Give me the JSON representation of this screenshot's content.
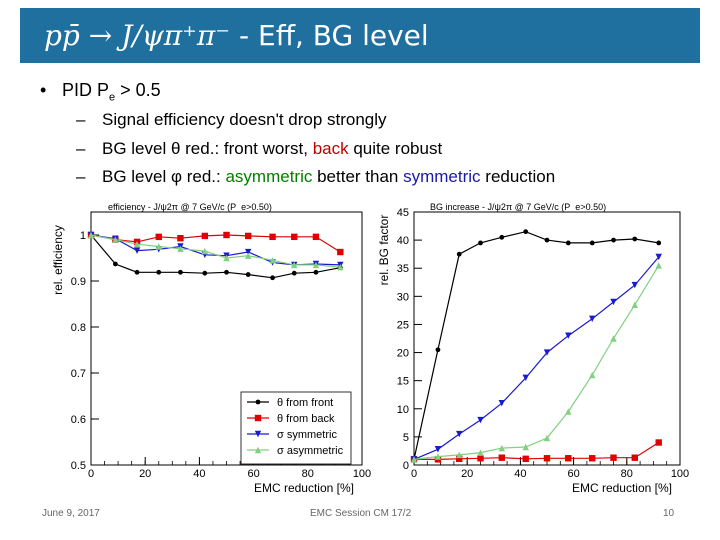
{
  "slide": {
    "title_math": "pp̄ → J/ψπ⁺π⁻",
    "title_rest": " - Eff, BG level",
    "bullet_dot": "•",
    "bullet_prefix": "PID P",
    "bullet_sub": "e",
    "bullet_suffix": " > 0.5",
    "dash": "–",
    "sub1": "Signal efficiency doesn't drop strongly",
    "sub2_a": "BG level θ red.: front worst, ",
    "sub2_b": "back",
    "sub2_c": " quite robust",
    "sub3_a": "BG level φ red.: ",
    "sub3_b": "asymmetric",
    "sub3_c": " better than ",
    "sub3_d": "symmetric",
    "sub3_e": " reduction"
  },
  "footer": {
    "date": "June 9, 2017",
    "center": "EMC Session CM 17/2",
    "page": "10"
  },
  "colors": {
    "title_bg": "#1f6f9f",
    "front": "#000000",
    "back": "#e00000",
    "sym": "#1a1ad0",
    "asym": "#80d080"
  },
  "chart_data": [
    {
      "type": "line",
      "title": "efficiency - J/ψ2π @ 7 GeV/c (P_e>0.50)",
      "xlabel": "EMC reduction [%]",
      "ylabel": "rel. efficiency",
      "xlim": [
        0,
        100
      ],
      "ylim": [
        0.5,
        1.05
      ],
      "xticks": [
        0,
        20,
        40,
        60,
        80,
        100
      ],
      "yticks": [
        0.5,
        0.6,
        0.7,
        0.8,
        0.9,
        1
      ],
      "ytick_labels": [
        "0.5",
        "0.6",
        "0.7",
        "0.8",
        "0.9",
        "1"
      ],
      "legend": "bottom-right",
      "series": [
        {
          "name": "θ from front",
          "color": "#000000",
          "marker": "circle",
          "x": [
            0,
            9,
            17,
            25,
            33,
            42,
            50,
            58,
            67,
            75,
            83,
            92
          ],
          "y": [
            1.0,
            0.937,
            0.919,
            0.919,
            0.919,
            0.917,
            0.919,
            0.914,
            0.907,
            0.917,
            0.919,
            0.929
          ]
        },
        {
          "name": "θ from back",
          "color": "#e00000",
          "marker": "square",
          "x": [
            0,
            9,
            17,
            25,
            33,
            42,
            50,
            58,
            67,
            75,
            83,
            92
          ],
          "y": [
            1.0,
            0.99,
            0.985,
            0.996,
            0.993,
            0.998,
            1.0,
            0.998,
            0.996,
            0.996,
            0.996,
            0.963
          ]
        },
        {
          "name": "σ symmetric",
          "color": "#1a1ad0",
          "marker": "triangle-down",
          "x": [
            0,
            9,
            17,
            25,
            33,
            42,
            50,
            58,
            67,
            75,
            83,
            92
          ],
          "y": [
            1.0,
            0.992,
            0.966,
            0.969,
            0.975,
            0.957,
            0.955,
            0.963,
            0.94,
            0.935,
            0.937,
            0.935
          ]
        },
        {
          "name": "σ asymmetric",
          "color": "#80d080",
          "marker": "triangle-up",
          "x": [
            0,
            9,
            17,
            25,
            33,
            42,
            50,
            58,
            67,
            75,
            83,
            92
          ],
          "y": [
            1.0,
            0.99,
            0.98,
            0.975,
            0.97,
            0.965,
            0.95,
            0.955,
            0.945,
            0.935,
            0.935,
            0.93
          ]
        }
      ]
    },
    {
      "type": "line",
      "title": "BG increase - J/ψ2π @ 7 GeV/c (P_e>0.50)",
      "xlabel": "EMC reduction [%]",
      "ylabel": "rel. BG factor",
      "xlim": [
        0,
        100
      ],
      "ylim": [
        0,
        45
      ],
      "xticks": [
        0,
        20,
        40,
        60,
        80,
        100
      ],
      "yticks": [
        0,
        5,
        10,
        15,
        20,
        25,
        30,
        35,
        40,
        45
      ],
      "legend": "none",
      "series": [
        {
          "name": "θ from front",
          "color": "#000000",
          "marker": "circle",
          "x": [
            0,
            9,
            17,
            25,
            33,
            42,
            50,
            58,
            67,
            75,
            83,
            92
          ],
          "y": [
            1.0,
            20.5,
            37.5,
            39.5,
            40.5,
            41.5,
            40.0,
            39.5,
            39.5,
            40.0,
            40.2,
            39.5
          ]
        },
        {
          "name": "θ from back",
          "color": "#e00000",
          "marker": "square",
          "x": [
            0,
            9,
            17,
            25,
            33,
            42,
            50,
            58,
            67,
            75,
            83,
            92
          ],
          "y": [
            1.0,
            1.0,
            1.1,
            1.2,
            1.3,
            1.1,
            1.2,
            1.2,
            1.2,
            1.3,
            1.3,
            4.0
          ]
        },
        {
          "name": "σ symmetric",
          "color": "#1a1ad0",
          "marker": "triangle-down",
          "x": [
            0,
            9,
            17,
            25,
            33,
            42,
            50,
            58,
            67,
            75,
            83,
            92
          ],
          "y": [
            1.0,
            2.8,
            5.5,
            8.0,
            11.0,
            15.5,
            20.0,
            23.0,
            26.0,
            29.0,
            32.0,
            37.0
          ]
        },
        {
          "name": "σ asymmetric",
          "color": "#80d080",
          "marker": "triangle-up",
          "x": [
            0,
            9,
            17,
            25,
            33,
            42,
            50,
            58,
            67,
            75,
            83,
            92
          ],
          "y": [
            1.0,
            1.5,
            1.8,
            2.2,
            3.0,
            3.2,
            4.8,
            9.5,
            16.0,
            22.5,
            28.5,
            35.5
          ]
        }
      ]
    }
  ]
}
